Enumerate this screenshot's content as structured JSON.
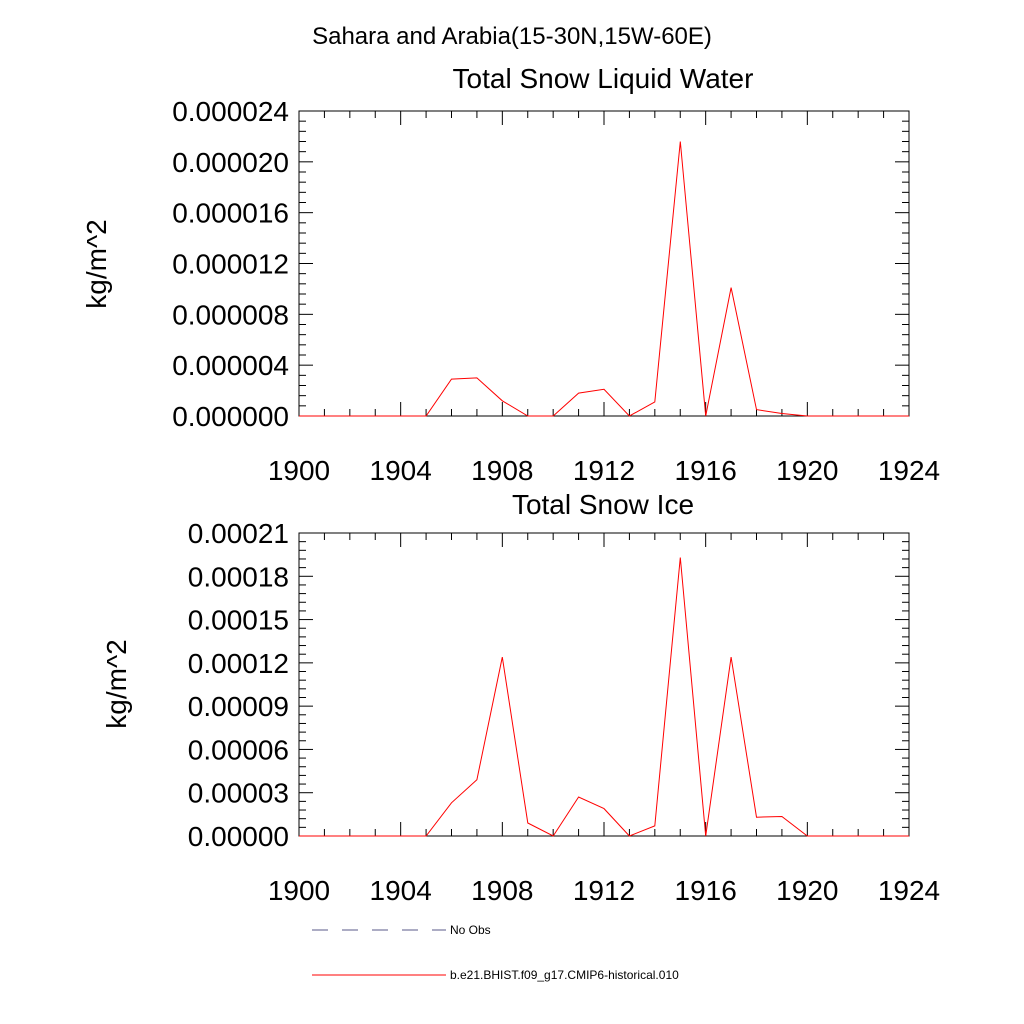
{
  "page_title": "Sahara and Arabia(15-30N,15W-60E)",
  "chart_data": [
    {
      "type": "line",
      "title": "Total Snow Liquid Water",
      "xlabel": "",
      "ylabel": "kg/m^2",
      "xlim": [
        1900,
        1924
      ],
      "ylim": [
        0,
        2.4e-05
      ],
      "x_ticks": [
        "1900",
        "1904",
        "1908",
        "1912",
        "1916",
        "1920",
        "1924"
      ],
      "y_ticks": [
        "0.000000",
        "0.000004",
        "0.000008",
        "0.000012",
        "0.000016",
        "0.000020",
        "0.000024"
      ],
      "series": [
        {
          "name": "b.e21.BHIST.f09_g17.CMIP6-historical.010",
          "color": "#ff0000",
          "x": [
            1900,
            1901,
            1902,
            1903,
            1904,
            1905,
            1906,
            1907,
            1908,
            1909,
            1910,
            1911,
            1912,
            1913,
            1914,
            1915,
            1916,
            1917,
            1918,
            1919,
            1920,
            1921,
            1922,
            1923,
            1924
          ],
          "y": [
            0,
            0,
            0,
            0,
            0,
            0,
            2.9e-06,
            3e-06,
            1.2e-06,
            0,
            0,
            1.8e-06,
            2.1e-06,
            0,
            1.1e-06,
            2.16e-05,
            0,
            1.01e-05,
            5e-07,
            2e-07,
            0,
            0,
            0,
            0,
            0
          ]
        }
      ]
    },
    {
      "type": "line",
      "title": "Total Snow Ice",
      "xlabel": "",
      "ylabel": "kg/m^2",
      "xlim": [
        1900,
        1924
      ],
      "ylim": [
        0,
        0.00021
      ],
      "x_ticks": [
        "1900",
        "1904",
        "1908",
        "1912",
        "1916",
        "1920",
        "1924"
      ],
      "y_ticks": [
        "0.00000",
        "0.00003",
        "0.00006",
        "0.00009",
        "0.00012",
        "0.00015",
        "0.00018",
        "0.00021"
      ],
      "series": [
        {
          "name": "b.e21.BHIST.f09_g17.CMIP6-historical.010",
          "color": "#ff0000",
          "x": [
            1900,
            1901,
            1902,
            1903,
            1904,
            1905,
            1906,
            1907,
            1908,
            1909,
            1910,
            1911,
            1912,
            1913,
            1914,
            1915,
            1916,
            1917,
            1918,
            1919,
            1920,
            1921,
            1922,
            1923,
            1924
          ],
          "y": [
            0,
            0,
            0,
            0,
            0,
            0,
            2.3e-05,
            3.9e-05,
            0.000124,
            9e-06,
            0,
            2.7e-05,
            1.9e-05,
            0,
            7e-06,
            0.000193,
            0,
            0.000124,
            1.3e-05,
            1.35e-05,
            0,
            0,
            0,
            0,
            0
          ]
        }
      ]
    }
  ],
  "legend": {
    "placement": "bottom",
    "items": [
      {
        "label": "No Obs",
        "style": "dashed",
        "color": "#5a5a8a"
      },
      {
        "label": "b.e21.BHIST.f09_g17.CMIP6-historical.010",
        "style": "solid",
        "color": "#ff0000"
      }
    ]
  }
}
